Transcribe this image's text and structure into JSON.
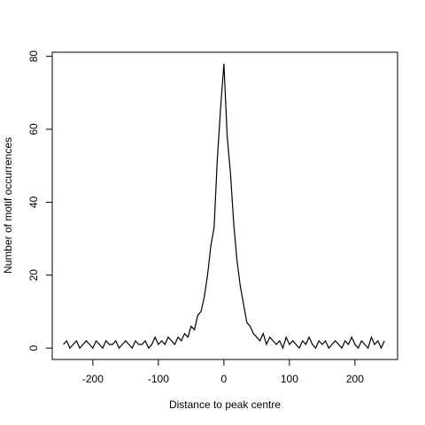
{
  "chart_data": {
    "type": "line",
    "xlabel": "Distance to peak centre",
    "ylabel": "Number of motif occurrences",
    "x": [
      -245,
      -240,
      -235,
      -230,
      -225,
      -220,
      -215,
      -210,
      -205,
      -200,
      -195,
      -190,
      -185,
      -180,
      -175,
      -170,
      -165,
      -160,
      -155,
      -150,
      -145,
      -140,
      -135,
      -130,
      -125,
      -120,
      -115,
      -110,
      -105,
      -100,
      -95,
      -90,
      -85,
      -80,
      -75,
      -70,
      -65,
      -60,
      -55,
      -50,
      -45,
      -40,
      -35,
      -30,
      -25,
      -20,
      -15,
      -10,
      -5,
      0,
      5,
      10,
      15,
      20,
      25,
      30,
      35,
      40,
      45,
      50,
      55,
      60,
      65,
      70,
      75,
      80,
      85,
      90,
      95,
      100,
      105,
      110,
      115,
      120,
      125,
      130,
      135,
      140,
      145,
      150,
      155,
      160,
      165,
      170,
      175,
      180,
      185,
      190,
      195,
      200,
      205,
      210,
      215,
      220,
      225,
      230,
      235,
      240,
      245
    ],
    "series": [
      {
        "color": "#000000",
        "values": [
          1,
          2,
          0,
          1,
          2,
          0,
          1,
          2,
          1,
          0,
          2,
          1,
          0,
          2,
          1,
          1,
          2,
          0,
          1,
          2,
          1,
          0,
          2,
          1,
          1,
          2,
          0,
          1,
          3,
          1,
          2,
          1,
          3,
          2,
          1,
          3,
          2,
          4,
          3,
          6,
          5,
          9,
          10,
          14,
          20,
          28,
          33,
          52,
          66,
          78,
          58,
          48,
          34,
          24,
          17,
          12,
          7,
          6,
          4,
          3,
          2,
          4,
          1,
          3,
          2,
          1,
          2,
          0,
          3,
          1,
          2,
          1,
          0,
          2,
          1,
          3,
          1,
          0,
          2,
          1,
          2,
          0,
          1,
          2,
          1,
          0,
          2,
          1,
          3,
          1,
          0,
          2,
          1,
          0,
          3,
          1,
          2,
          0,
          2
        ]
      }
    ],
    "xlim": [
      -262,
      265
    ],
    "ylim": [
      -3.12,
      81.12
    ],
    "xticks": [
      -200,
      -100,
      0,
      100,
      200
    ],
    "yticks": [
      0,
      20,
      40,
      60,
      80
    ]
  }
}
